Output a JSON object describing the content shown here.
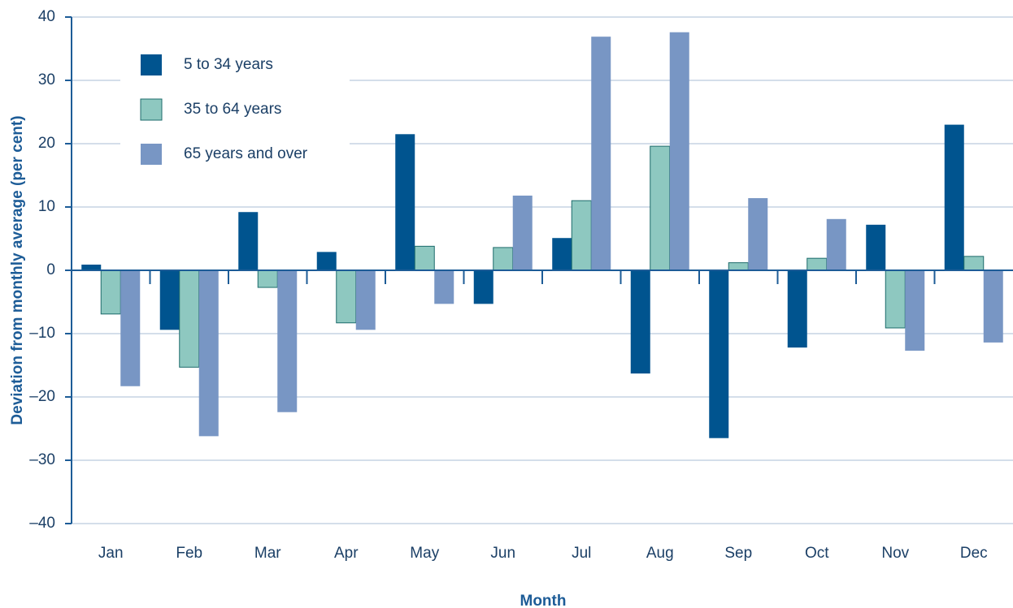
{
  "chart_data": {
    "type": "bar",
    "x_label": "Month",
    "y_label": "Deviation from monthly average (per cent)",
    "categories": [
      "Jan",
      "Feb",
      "Mar",
      "Apr",
      "May",
      "Jun",
      "Jul",
      "Aug",
      "Sep",
      "Oct",
      "Nov",
      "Dec"
    ],
    "series": [
      {
        "name": "5 to 34 years",
        "color": "#00548f",
        "values": [
          0.9,
          -9.4,
          9.2,
          2.9,
          21.5,
          -5.3,
          5.1,
          -16.3,
          -26.5,
          -12.2,
          7.2,
          23.0
        ]
      },
      {
        "name": "35 to 64 years",
        "color": "#8ec8c0",
        "values": [
          -6.9,
          -15.3,
          -2.7,
          -8.3,
          3.8,
          3.6,
          11.0,
          19.6,
          1.2,
          1.9,
          -9.1,
          2.2
        ]
      },
      {
        "name": "65 years and over",
        "color": "#7896c4",
        "values": [
          -18.3,
          -26.2,
          -22.4,
          -9.4,
          -5.3,
          11.8,
          36.9,
          37.6,
          11.4,
          8.1,
          -12.7,
          -11.4
        ]
      }
    ],
    "ylim": [
      -40,
      40
    ],
    "yticks": [
      {
        "value": -40,
        "label": "–40"
      },
      {
        "value": -30,
        "label": "–30"
      },
      {
        "value": -20,
        "label": "–20"
      },
      {
        "value": -10,
        "label": "–10"
      },
      0,
      10,
      20,
      30,
      40
    ],
    "grid": true,
    "legend": "upper left"
  }
}
